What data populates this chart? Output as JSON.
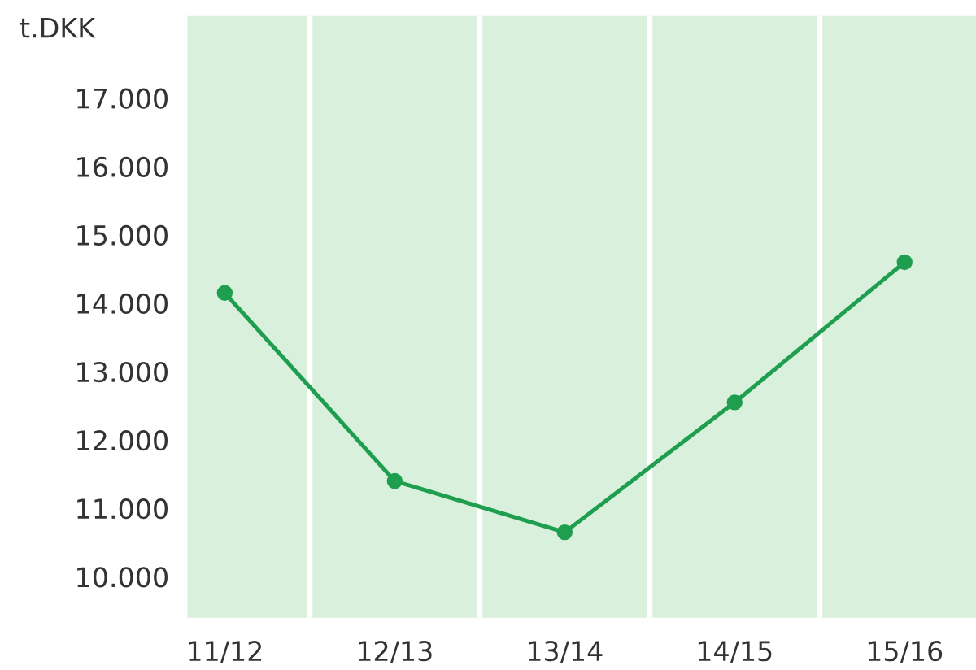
{
  "chart_data": {
    "type": "line",
    "ylabel": "t.DKK",
    "categories": [
      "11/12",
      "12/13",
      "13/14",
      "14/15",
      "15/16"
    ],
    "series": [
      {
        "color": "#1e9e4e",
        "values": [
          14150,
          11400,
          10650,
          12550,
          14600
        ]
      }
    ],
    "ylim": [
      9400,
      18200
    ],
    "yticks": [
      {
        "value": 10000,
        "label": "10.000"
      },
      {
        "value": 11000,
        "label": "11.000"
      },
      {
        "value": 12000,
        "label": "12.000"
      },
      {
        "value": 13000,
        "label": "13.000"
      },
      {
        "value": 14000,
        "label": "14.000"
      },
      {
        "value": 15000,
        "label": "15.000"
      },
      {
        "value": 16000,
        "label": "16.000"
      },
      {
        "value": 17000,
        "label": "17.000"
      }
    ],
    "grid": "x",
    "marker": "circle",
    "line_style": "solid",
    "legend": false
  }
}
